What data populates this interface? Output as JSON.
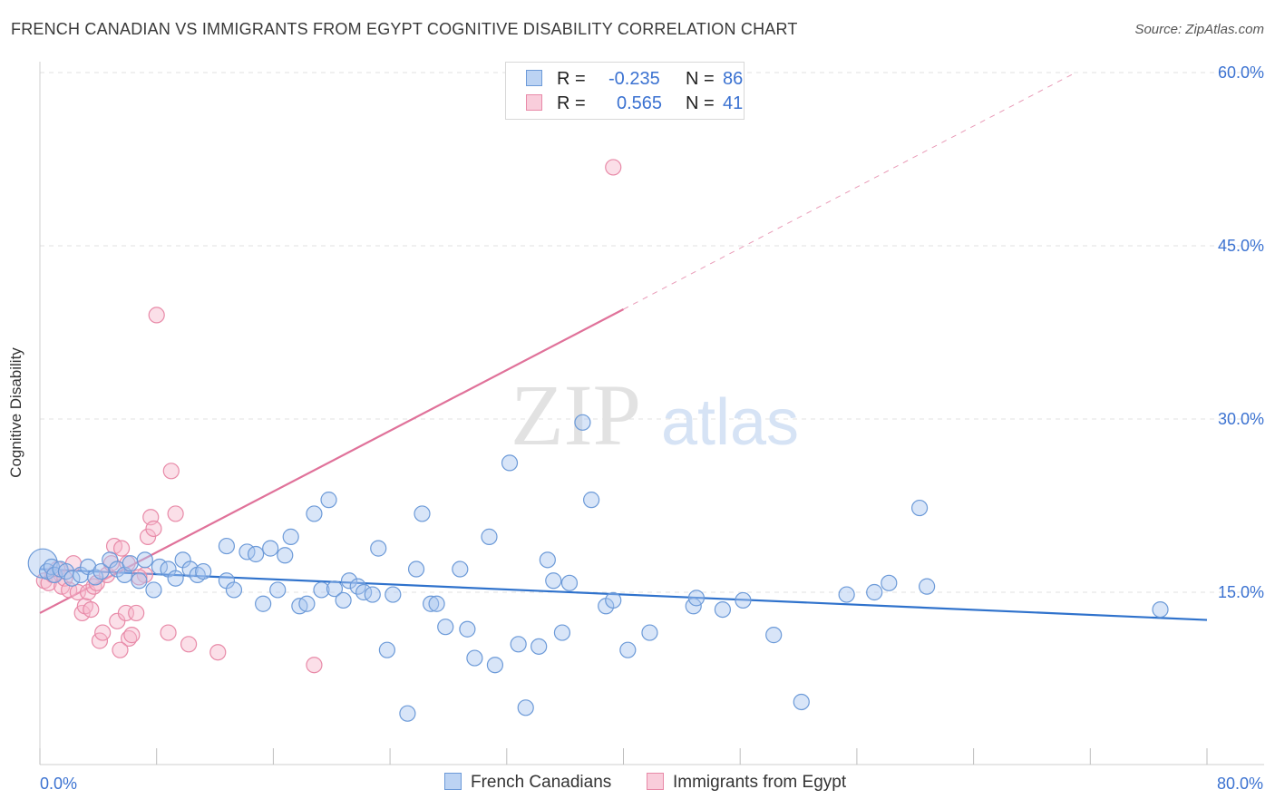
{
  "title": "FRENCH CANADIAN VS IMMIGRANTS FROM EGYPT COGNITIVE DISABILITY CORRELATION CHART",
  "source": "Source: ZipAtlas.com",
  "watermark": {
    "zip": "ZIP",
    "atlas": "atlas"
  },
  "legend": {
    "rows": [
      {
        "r_label": "R =",
        "r_value": "-0.235",
        "n_label": "N =",
        "n_value": "86"
      },
      {
        "r_label": "R =",
        "r_value": "0.565",
        "n_label": "N =",
        "n_value": "41"
      }
    ]
  },
  "bottom_legend": [
    "French Canadians",
    "Immigrants from Egypt"
  ],
  "colors": {
    "blue_fill": "#a9c6f0",
    "blue_stroke": "#6c9ad8",
    "blue_line": "#2f72cc",
    "pink_fill": "#f6b8cb",
    "pink_stroke": "#e88aa8",
    "pink_line": "#e0729a",
    "tick_label": "#3b72d1",
    "grid": "#e0e0e0"
  },
  "chart_data": {
    "type": "scatter",
    "title": "FRENCH CANADIAN VS IMMIGRANTS FROM EGYPT COGNITIVE DISABILITY CORRELATION CHART",
    "ylabel": "Cognitive Disability",
    "xlabel": "",
    "xlim": [
      0,
      80
    ],
    "ylim": [
      0,
      63
    ],
    "x_tick_labels": [
      {
        "value": 0,
        "label": "0.0%"
      },
      {
        "value": 80,
        "label": "80.0%"
      }
    ],
    "y_tick_labels": [
      {
        "value": 15,
        "label": "15.0%"
      },
      {
        "value": 30,
        "label": "30.0%"
      },
      {
        "value": 45,
        "label": "45.0%"
      },
      {
        "value": 60,
        "label": "60.0%"
      }
    ],
    "grid": true,
    "series": [
      {
        "name": "French Canadians",
        "trend": {
          "x": [
            0,
            80
          ],
          "y": [
            17.0,
            12.6
          ]
        },
        "points": [
          [
            0.2,
            17.5
          ],
          [
            0.5,
            16.8
          ],
          [
            0.8,
            17.2
          ],
          [
            1.0,
            16.5
          ],
          [
            1.4,
            17.0
          ],
          [
            1.8,
            16.8
          ],
          [
            2.2,
            16.2
          ],
          [
            2.8,
            16.5
          ],
          [
            3.3,
            17.2
          ],
          [
            3.8,
            16.3
          ],
          [
            4.2,
            16.8
          ],
          [
            4.8,
            17.8
          ],
          [
            5.3,
            17.0
          ],
          [
            5.8,
            16.5
          ],
          [
            6.2,
            17.5
          ],
          [
            6.8,
            16.0
          ],
          [
            7.2,
            17.8
          ],
          [
            7.8,
            15.2
          ],
          [
            8.2,
            17.2
          ],
          [
            8.8,
            17.0
          ],
          [
            9.3,
            16.2
          ],
          [
            9.8,
            17.8
          ],
          [
            10.3,
            17.0
          ],
          [
            10.8,
            16.5
          ],
          [
            11.2,
            16.8
          ],
          [
            12.8,
            16.0
          ],
          [
            13.3,
            15.2
          ],
          [
            12.8,
            19.0
          ],
          [
            14.2,
            18.5
          ],
          [
            14.8,
            18.3
          ],
          [
            15.3,
            14.0
          ],
          [
            15.8,
            18.8
          ],
          [
            16.3,
            15.2
          ],
          [
            16.8,
            18.2
          ],
          [
            17.2,
            19.8
          ],
          [
            17.8,
            13.8
          ],
          [
            18.3,
            14.0
          ],
          [
            18.8,
            21.8
          ],
          [
            19.3,
            15.2
          ],
          [
            19.8,
            23.0
          ],
          [
            20.2,
            15.3
          ],
          [
            20.8,
            14.3
          ],
          [
            21.2,
            16.0
          ],
          [
            21.8,
            15.5
          ],
          [
            22.2,
            15.0
          ],
          [
            22.8,
            14.8
          ],
          [
            23.2,
            18.8
          ],
          [
            23.8,
            10.0
          ],
          [
            24.2,
            14.8
          ],
          [
            25.2,
            4.5
          ],
          [
            25.8,
            17.0
          ],
          [
            26.2,
            21.8
          ],
          [
            26.8,
            14.0
          ],
          [
            27.2,
            14.0
          ],
          [
            27.8,
            12.0
          ],
          [
            28.8,
            17.0
          ],
          [
            29.3,
            11.8
          ],
          [
            29.8,
            9.3
          ],
          [
            30.8,
            19.8
          ],
          [
            31.2,
            8.7
          ],
          [
            32.2,
            26.2
          ],
          [
            32.8,
            10.5
          ],
          [
            33.3,
            5.0
          ],
          [
            34.2,
            10.3
          ],
          [
            34.8,
            17.8
          ],
          [
            35.2,
            16.0
          ],
          [
            35.8,
            11.5
          ],
          [
            36.3,
            15.8
          ],
          [
            37.2,
            29.7
          ],
          [
            37.8,
            23.0
          ],
          [
            38.8,
            13.8
          ],
          [
            39.3,
            14.3
          ],
          [
            40.3,
            10.0
          ],
          [
            41.8,
            11.5
          ],
          [
            44.8,
            13.8
          ],
          [
            45.0,
            14.5
          ],
          [
            46.8,
            13.5
          ],
          [
            48.2,
            14.3
          ],
          [
            50.3,
            11.3
          ],
          [
            52.2,
            5.5
          ],
          [
            55.3,
            14.8
          ],
          [
            57.2,
            15.0
          ],
          [
            58.2,
            15.8
          ],
          [
            60.3,
            22.3
          ],
          [
            60.8,
            15.5
          ],
          [
            76.8,
            13.5
          ]
        ]
      },
      {
        "name": "Immigrants from Egypt",
        "trend": {
          "x": [
            0,
            40
          ],
          "y": [
            13.2,
            39.5
          ]
        },
        "trend_extension": {
          "x": [
            40,
            71
          ],
          "y": [
            39.5,
            60.0
          ]
        },
        "points": [
          [
            0.3,
            16.0
          ],
          [
            0.6,
            15.8
          ],
          [
            0.9,
            16.5
          ],
          [
            1.2,
            17.0
          ],
          [
            1.5,
            15.5
          ],
          [
            1.7,
            16.2
          ],
          [
            2.0,
            15.2
          ],
          [
            2.3,
            17.5
          ],
          [
            2.6,
            15.0
          ],
          [
            2.9,
            13.2
          ],
          [
            3.1,
            13.8
          ],
          [
            3.3,
            15.0
          ],
          [
            3.5,
            13.5
          ],
          [
            3.7,
            15.5
          ],
          [
            3.9,
            15.8
          ],
          [
            4.1,
            10.8
          ],
          [
            4.3,
            11.5
          ],
          [
            4.6,
            16.5
          ],
          [
            4.9,
            17.5
          ],
          [
            5.1,
            19.0
          ],
          [
            5.3,
            12.5
          ],
          [
            5.6,
            18.8
          ],
          [
            5.9,
            13.2
          ],
          [
            6.1,
            11.0
          ],
          [
            6.3,
            11.3
          ],
          [
            6.6,
            13.2
          ],
          [
            5.5,
            10.0
          ],
          [
            6.0,
            17.5
          ],
          [
            7.2,
            16.5
          ],
          [
            6.8,
            16.3
          ],
          [
            7.4,
            19.8
          ],
          [
            7.6,
            21.5
          ],
          [
            7.8,
            20.5
          ],
          [
            8.0,
            39.0
          ],
          [
            8.8,
            11.5
          ],
          [
            9.0,
            25.5
          ],
          [
            9.3,
            21.8
          ],
          [
            10.2,
            10.5
          ],
          [
            12.2,
            9.8
          ],
          [
            18.8,
            8.7
          ],
          [
            39.3,
            51.8
          ]
        ]
      }
    ]
  }
}
